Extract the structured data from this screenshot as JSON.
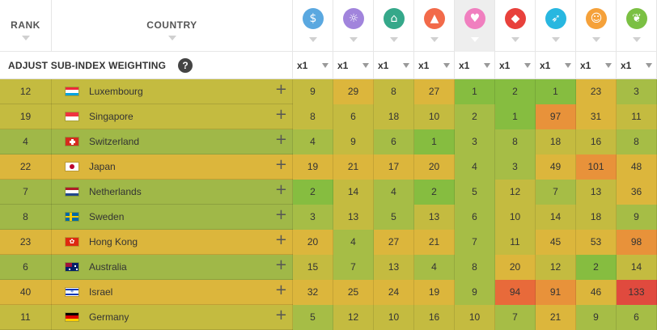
{
  "header": {
    "rank_label": "RANK",
    "country_label": "COUNTRY",
    "sub_indices": [
      {
        "icon": "money-bag-icon",
        "glyph": "$",
        "color": "#5aa8e0"
      },
      {
        "icon": "lightbulb-icon",
        "glyph": "☼",
        "color": "#a184dc"
      },
      {
        "icon": "bank-icon",
        "glyph": "⌂",
        "color": "#35a88a"
      },
      {
        "icon": "graduation-cap-icon",
        "glyph": "▲",
        "color": "#f26a4a"
      },
      {
        "icon": "heart-pulse-icon",
        "glyph": "♥",
        "color": "#f07fbf",
        "active": true
      },
      {
        "icon": "shield-icon",
        "glyph": "◆",
        "color": "#e8413c"
      },
      {
        "icon": "runner-icon",
        "glyph": "➶",
        "color": "#28b7e0"
      },
      {
        "icon": "people-icon",
        "glyph": "☺",
        "color": "#f5a13a"
      },
      {
        "icon": "leaf-icon",
        "glyph": "❦",
        "color": "#7bc043"
      }
    ]
  },
  "weighting": {
    "label": "ADJUST SUB-INDEX WEIGHTING",
    "help": "?",
    "values": [
      "x1",
      "x1",
      "x1",
      "x1",
      "x1",
      "x1",
      "x1",
      "x1",
      "x1"
    ]
  },
  "colors": {
    "row_bg": {
      "green": "#a0b848",
      "olive": "#c4bb40",
      "amber": "#dcb63c"
    },
    "cell": {
      "deep_green": "#86bd40",
      "light_green": "#a6bd46",
      "olive": "#c4bb40",
      "amber": "#dcb63c",
      "orange": "#e8923a",
      "red_orange": "#e86a3a",
      "red": "#e04a3e"
    }
  },
  "rows": [
    {
      "rank": "12",
      "country": "Luxembourg",
      "flag": "luxembourg",
      "tone": "olive",
      "values": [
        "9",
        "29",
        "8",
        "27",
        "1",
        "2",
        "1",
        "23",
        "3"
      ],
      "cells": [
        "olive",
        "amber",
        "olive",
        "amber",
        "deep_green",
        "deep_green",
        "deep_green",
        "amber",
        "light_green"
      ]
    },
    {
      "rank": "19",
      "country": "Singapore",
      "flag": "singapore",
      "tone": "olive",
      "values": [
        "8",
        "6",
        "18",
        "10",
        "2",
        "1",
        "97",
        "31",
        "11"
      ],
      "cells": [
        "olive",
        "olive",
        "olive",
        "olive",
        "light_green",
        "deep_green",
        "orange",
        "amber",
        "olive"
      ]
    },
    {
      "rank": "4",
      "country": "Switzerland",
      "flag": "switzerland",
      "tone": "green",
      "values": [
        "4",
        "9",
        "6",
        "1",
        "3",
        "8",
        "18",
        "16",
        "8"
      ],
      "cells": [
        "light_green",
        "olive",
        "light_green",
        "deep_green",
        "light_green",
        "light_green",
        "olive",
        "olive",
        "light_green"
      ]
    },
    {
      "rank": "22",
      "country": "Japan",
      "flag": "japan",
      "tone": "amber",
      "values": [
        "19",
        "21",
        "17",
        "20",
        "4",
        "3",
        "49",
        "101",
        "48"
      ],
      "cells": [
        "amber",
        "amber",
        "amber",
        "amber",
        "light_green",
        "light_green",
        "amber",
        "orange",
        "amber"
      ]
    },
    {
      "rank": "7",
      "country": "Netherlands",
      "flag": "netherlands",
      "tone": "green",
      "values": [
        "2",
        "14",
        "4",
        "2",
        "5",
        "12",
        "7",
        "13",
        "36"
      ],
      "cells": [
        "deep_green",
        "olive",
        "light_green",
        "deep_green",
        "light_green",
        "olive",
        "light_green",
        "olive",
        "amber"
      ]
    },
    {
      "rank": "8",
      "country": "Sweden",
      "flag": "sweden",
      "tone": "green",
      "values": [
        "3",
        "13",
        "5",
        "13",
        "6",
        "10",
        "14",
        "18",
        "9"
      ],
      "cells": [
        "light_green",
        "olive",
        "light_green",
        "olive",
        "light_green",
        "olive",
        "olive",
        "olive",
        "light_green"
      ]
    },
    {
      "rank": "23",
      "country": "Hong Kong",
      "flag": "hongkong",
      "tone": "amber",
      "values": [
        "20",
        "4",
        "27",
        "21",
        "7",
        "11",
        "45",
        "53",
        "98"
      ],
      "cells": [
        "amber",
        "light_green",
        "amber",
        "amber",
        "light_green",
        "olive",
        "amber",
        "amber",
        "orange"
      ]
    },
    {
      "rank": "6",
      "country": "Australia",
      "flag": "australia",
      "tone": "green",
      "values": [
        "15",
        "7",
        "13",
        "4",
        "8",
        "20",
        "12",
        "2",
        "14"
      ],
      "cells": [
        "olive",
        "light_green",
        "olive",
        "light_green",
        "light_green",
        "amber",
        "olive",
        "deep_green",
        "olive"
      ]
    },
    {
      "rank": "40",
      "country": "Israel",
      "flag": "israel",
      "tone": "amber",
      "values": [
        "32",
        "25",
        "24",
        "19",
        "9",
        "94",
        "91",
        "46",
        "133"
      ],
      "cells": [
        "amber",
        "amber",
        "amber",
        "amber",
        "light_green",
        "red_orange",
        "orange",
        "amber",
        "red"
      ]
    },
    {
      "rank": "11",
      "country": "Germany",
      "flag": "germany",
      "tone": "olive",
      "values": [
        "5",
        "12",
        "10",
        "16",
        "10",
        "7",
        "21",
        "9",
        "6"
      ],
      "cells": [
        "light_green",
        "olive",
        "olive",
        "olive",
        "olive",
        "light_green",
        "amber",
        "light_green",
        "light_green"
      ]
    }
  ]
}
